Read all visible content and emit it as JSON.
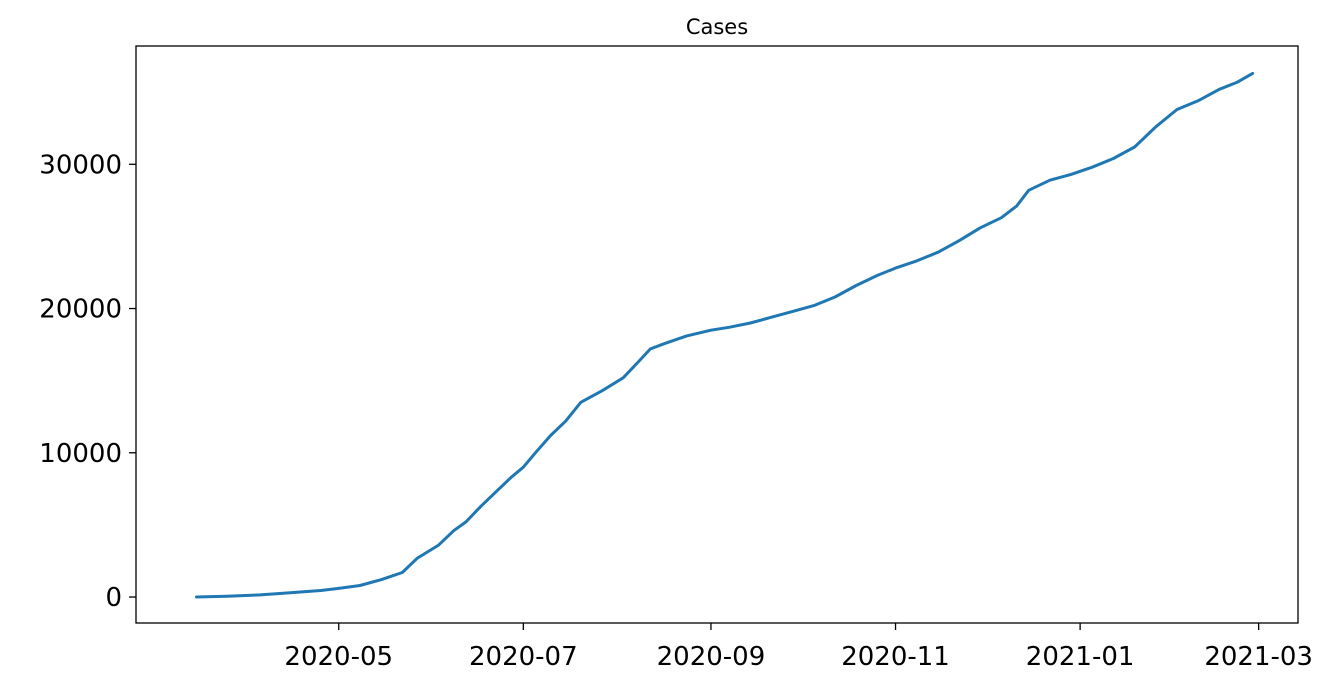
{
  "chart_data": {
    "type": "line",
    "title": "Cases",
    "xlabel": "",
    "ylabel": "",
    "x_tick_labels": [
      "2020-05",
      "2020-07",
      "2020-09",
      "2020-11",
      "2021-01",
      "2021-03"
    ],
    "x_tick_dates": [
      "2020-05-01",
      "2020-07-01",
      "2020-09-01",
      "2020-11-01",
      "2021-01-01",
      "2021-03-01"
    ],
    "y_ticks": [
      0,
      10000,
      20000,
      30000
    ],
    "y_tick_labels": [
      "0",
      "10000",
      "20000",
      "30000"
    ],
    "xlim": [
      "2020-02-24",
      "2021-03-14"
    ],
    "ylim": [
      -1800,
      38200
    ],
    "grid": false,
    "series": [
      {
        "name": "Cases",
        "color": "#1f77b4",
        "x": [
          "2020-03-15",
          "2020-03-25",
          "2020-04-05",
          "2020-04-15",
          "2020-04-25",
          "2020-05-01",
          "2020-05-08",
          "2020-05-15",
          "2020-05-22",
          "2020-05-27",
          "2020-06-03",
          "2020-06-08",
          "2020-06-12",
          "2020-06-17",
          "2020-06-22",
          "2020-06-27",
          "2020-07-01",
          "2020-07-05",
          "2020-07-10",
          "2020-07-15",
          "2020-07-20",
          "2020-07-27",
          "2020-08-03",
          "2020-08-08",
          "2020-08-12",
          "2020-08-17",
          "2020-08-24",
          "2020-09-01",
          "2020-09-07",
          "2020-09-14",
          "2020-09-21",
          "2020-09-28",
          "2020-10-05",
          "2020-10-12",
          "2020-10-19",
          "2020-10-26",
          "2020-11-01",
          "2020-11-08",
          "2020-11-15",
          "2020-11-22",
          "2020-11-29",
          "2020-12-06",
          "2020-12-11",
          "2020-12-15",
          "2020-12-22",
          "2020-12-29",
          "2021-01-05",
          "2021-01-12",
          "2021-01-19",
          "2021-01-26",
          "2021-02-02",
          "2021-02-09",
          "2021-02-16",
          "2021-02-22",
          "2021-02-27"
        ],
        "values": [
          0,
          50,
          150,
          300,
          450,
          600,
          800,
          1200,
          1700,
          2700,
          3600,
          4600,
          5200,
          6300,
          7300,
          8300,
          9000,
          10000,
          11200,
          12200,
          13500,
          14300,
          15200,
          16300,
          17200,
          17600,
          18100,
          18500,
          18700,
          19000,
          19400,
          19800,
          20200,
          20800,
          21600,
          22300,
          22800,
          23300,
          23900,
          24700,
          25600,
          26300,
          27100,
          28200,
          28900,
          29300,
          29800,
          30400,
          31200,
          32600,
          33800,
          34400,
          35200,
          35700,
          36300
        ]
      }
    ]
  }
}
